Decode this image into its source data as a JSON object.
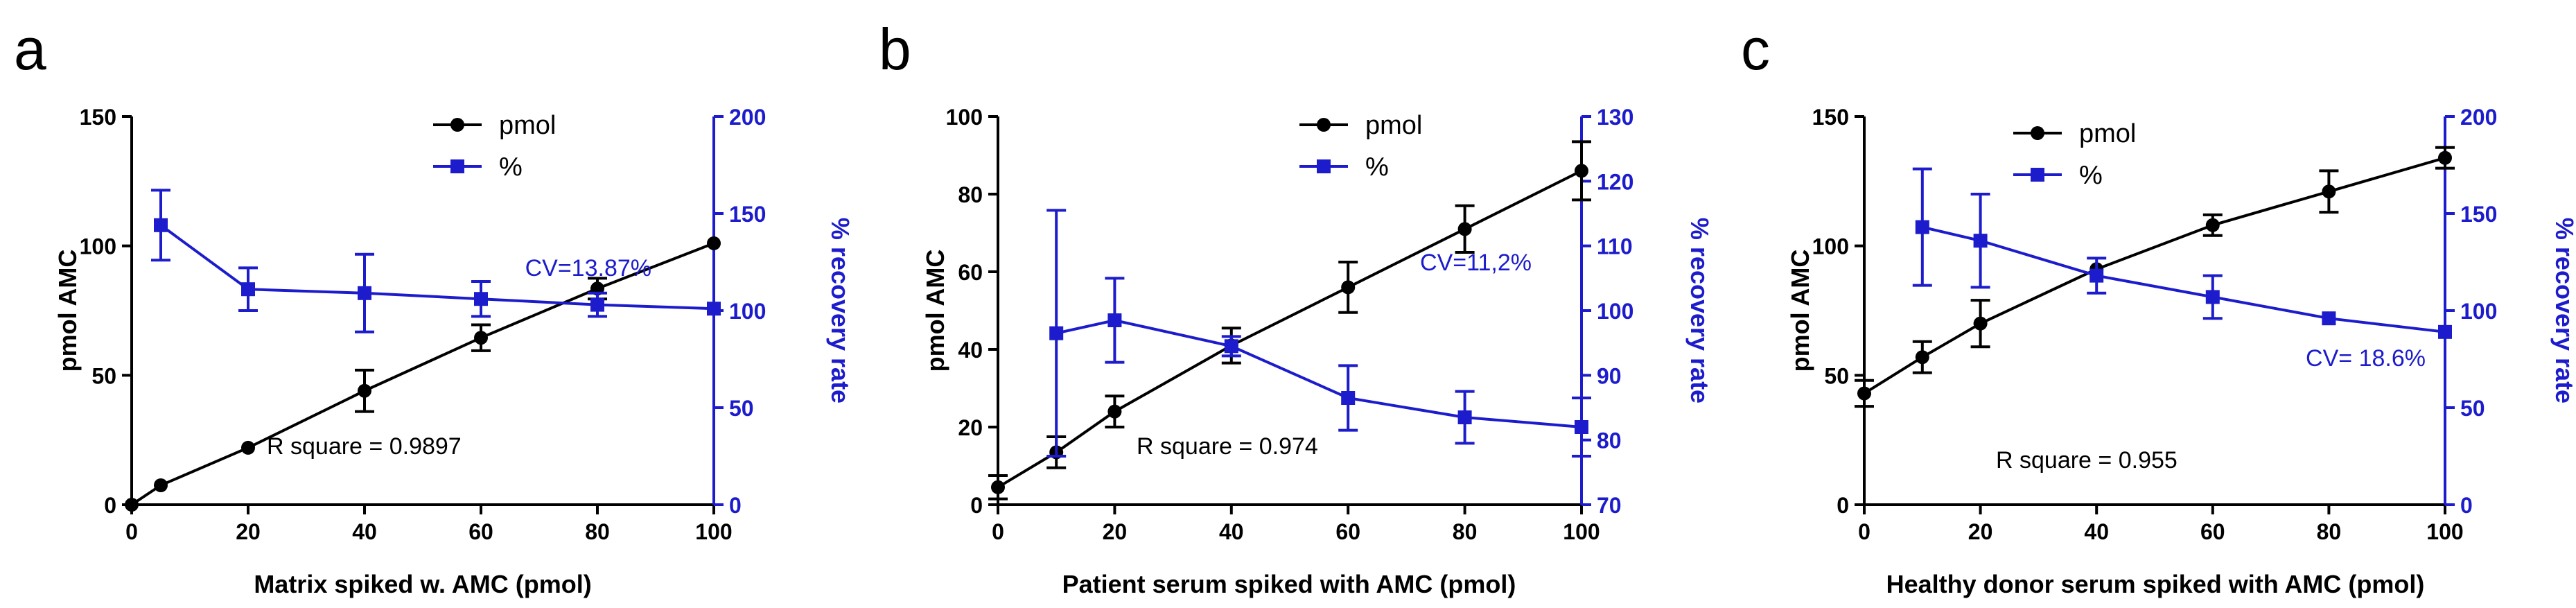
{
  "colors": {
    "pmol": "#000000",
    "percent": "#1c1ccc"
  },
  "chart_data": [
    {
      "type": "line",
      "panel_label": "a",
      "xlabel": "Matrix spiked w. AMC (pmol)",
      "ylabel": "pmol AMC",
      "y2label": "% recovery rate",
      "xlim": [
        0,
        100
      ],
      "ylim": [
        0,
        150
      ],
      "y2lim": [
        0,
        200
      ],
      "xticks": [
        0,
        20,
        40,
        60,
        80,
        100
      ],
      "yticks": [
        0,
        50,
        100,
        150
      ],
      "y2ticks": [
        0,
        50,
        100,
        150,
        200
      ],
      "legend_position": "top-center",
      "series": [
        {
          "name": "pmol",
          "axis": "left",
          "marker": "circle",
          "x": [
            0,
            5,
            20,
            40,
            60,
            80,
            100
          ],
          "y": [
            0,
            7.5,
            22,
            44,
            64.5,
            83.5,
            101
          ],
          "err": [
            0,
            0,
            0,
            8,
            5,
            4,
            0
          ]
        },
        {
          "name": "%",
          "axis": "right",
          "marker": "square",
          "x": [
            5,
            20,
            40,
            60,
            80,
            100
          ],
          "y": [
            144,
            111,
            109,
            106,
            103,
            101
          ],
          "err": [
            18,
            11,
            20,
            9,
            6,
            0
          ]
        }
      ],
      "annotations": [
        "CV=13.87%",
        "R square = 0.9897"
      ]
    },
    {
      "type": "line",
      "panel_label": "b",
      "xlabel": "Patient serum spiked with AMC (pmol)",
      "ylabel": "pmol AMC",
      "y2label": "% recovery rate",
      "xlim": [
        0,
        100
      ],
      "ylim": [
        0,
        100
      ],
      "y2lim": [
        70,
        130
      ],
      "xticks": [
        0,
        20,
        40,
        60,
        80,
        100
      ],
      "yticks": [
        0,
        20,
        40,
        60,
        80,
        100
      ],
      "y2ticks": [
        70,
        80,
        90,
        100,
        110,
        120,
        130
      ],
      "legend_position": "top-right",
      "series": [
        {
          "name": "pmol",
          "axis": "left",
          "marker": "circle",
          "x": [
            0,
            10,
            20,
            40,
            60,
            80,
            100
          ],
          "y": [
            4.5,
            13.5,
            24,
            41,
            56,
            71,
            86
          ],
          "err": [
            3,
            4,
            4,
            4.5,
            6.5,
            6,
            7.5
          ]
        },
        {
          "name": "%",
          "axis": "right",
          "marker": "square",
          "x": [
            10,
            20,
            40,
            60,
            80,
            100
          ],
          "y": [
            96.5,
            98.5,
            94.5,
            86.5,
            83.5,
            82
          ],
          "err": [
            19,
            6.5,
            1.5,
            5,
            4,
            4.5
          ]
        }
      ],
      "annotations": [
        "CV=11,2%",
        "R square = 0.974"
      ]
    },
    {
      "type": "line",
      "panel_label": "c",
      "xlabel": "Healthy donor serum spiked with AMC (pmol)",
      "ylabel": "pmol AMC",
      "y2label": "% recovery rate",
      "xlim": [
        0,
        100
      ],
      "ylim": [
        0,
        150
      ],
      "y2lim": [
        0,
        200
      ],
      "xticks": [
        0,
        20,
        40,
        60,
        80,
        100
      ],
      "yticks": [
        0,
        50,
        100,
        150
      ],
      "y2ticks": [
        0,
        50,
        100,
        150,
        200
      ],
      "legend_position": "top-center",
      "series": [
        {
          "name": "pmol",
          "axis": "left",
          "marker": "circle",
          "x": [
            0,
            10,
            20,
            40,
            60,
            80,
            100
          ],
          "y": [
            43,
            57,
            70,
            91,
            108,
            121,
            134
          ],
          "err": [
            5,
            6,
            9,
            0,
            4,
            8,
            4
          ]
        },
        {
          "name": "%",
          "axis": "right",
          "marker": "square",
          "x": [
            10,
            20,
            40,
            60,
            80,
            100
          ],
          "y": [
            143,
            136,
            118,
            107,
            96,
            89
          ],
          "err": [
            30,
            24,
            9,
            11,
            0,
            0
          ]
        }
      ],
      "annotations": [
        "CV= 18.6%",
        "R square = 0.955"
      ]
    }
  ]
}
